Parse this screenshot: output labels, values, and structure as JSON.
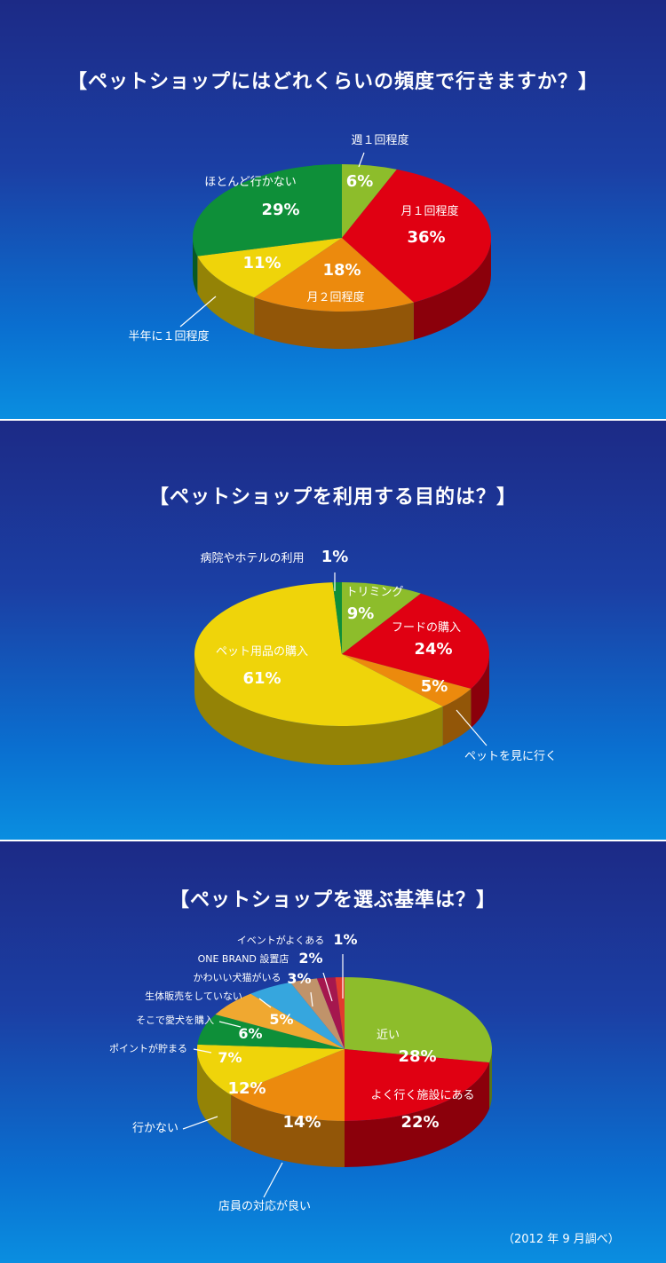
{
  "chart_data": [
    {
      "type": "pie",
      "title": "【ペットショップにはどれくらいの頻度で行きますか？】",
      "slices": [
        {
          "label": "週１回程度",
          "value": 6,
          "value_label": "6%",
          "color": "#8dbd2b"
        },
        {
          "label": "月１回程度",
          "value": 36,
          "value_label": "36%",
          "color": "#e00012"
        },
        {
          "label": "月２回程度",
          "value": 18,
          "value_label": "18%",
          "color": "#ec8a0d"
        },
        {
          "label": "半年に１回程度",
          "value": 11,
          "value_label": "11%",
          "color": "#efd40a"
        },
        {
          "label": "ほとんど行かない",
          "value": 29,
          "value_label": "29%",
          "color": "#0e8f39"
        }
      ]
    },
    {
      "type": "pie",
      "title": "【ペットショップを利用する目的は？】",
      "slices": [
        {
          "label": "トリミング",
          "value": 9,
          "value_label": "9%",
          "color": "#8dbd2b"
        },
        {
          "label": "フードの購入",
          "value": 24,
          "value_label": "24%",
          "color": "#e00012"
        },
        {
          "label": "ペットを見に行く",
          "value": 5,
          "value_label": "5%",
          "color": "#ec8a0d"
        },
        {
          "label": "ペット用品の購入",
          "value": 61,
          "value_label": "61%",
          "color": "#efd40a"
        },
        {
          "label": "病院やホテルの利用",
          "value": 1,
          "value_label": "1%",
          "color": "#0e8f39"
        }
      ]
    },
    {
      "type": "pie",
      "title": "【ペットショップを選ぶ基準は？】",
      "slices": [
        {
          "label": "近い",
          "value": 28,
          "value_label": "28%",
          "color": "#8dbd2b"
        },
        {
          "label": "よく行く施設にある",
          "value": 22,
          "value_label": "22%",
          "color": "#e00012"
        },
        {
          "label": "店員の対応が良い",
          "value": 14,
          "value_label": "14%",
          "color": "#ec8a0d"
        },
        {
          "label": "行かない",
          "value": 12,
          "value_label": "12%",
          "color": "#efd40a"
        },
        {
          "label": "ポイントが貯まる",
          "value": 7,
          "value_label": "7%",
          "color": "#0e8f39"
        },
        {
          "label": "そこで愛犬を購入",
          "value": 6,
          "value_label": "6%",
          "color": "#f0a830"
        },
        {
          "label": "生体販売をしていない",
          "value": 5,
          "value_label": "5%",
          "color": "#36a6de"
        },
        {
          "label": "かわいい犬猫がいる",
          "value": 3,
          "value_label": "3%",
          "color": "#c0936a"
        },
        {
          "label": "ONE BRAND 設置店",
          "value": 2,
          "value_label": "2%",
          "color": "#a5174e"
        },
        {
          "label": "イベントがよくある",
          "value": 1,
          "value_label": "1%",
          "color": "#e23b2e"
        }
      ]
    }
  ],
  "footnote": "（2012 年 9 月調べ）"
}
